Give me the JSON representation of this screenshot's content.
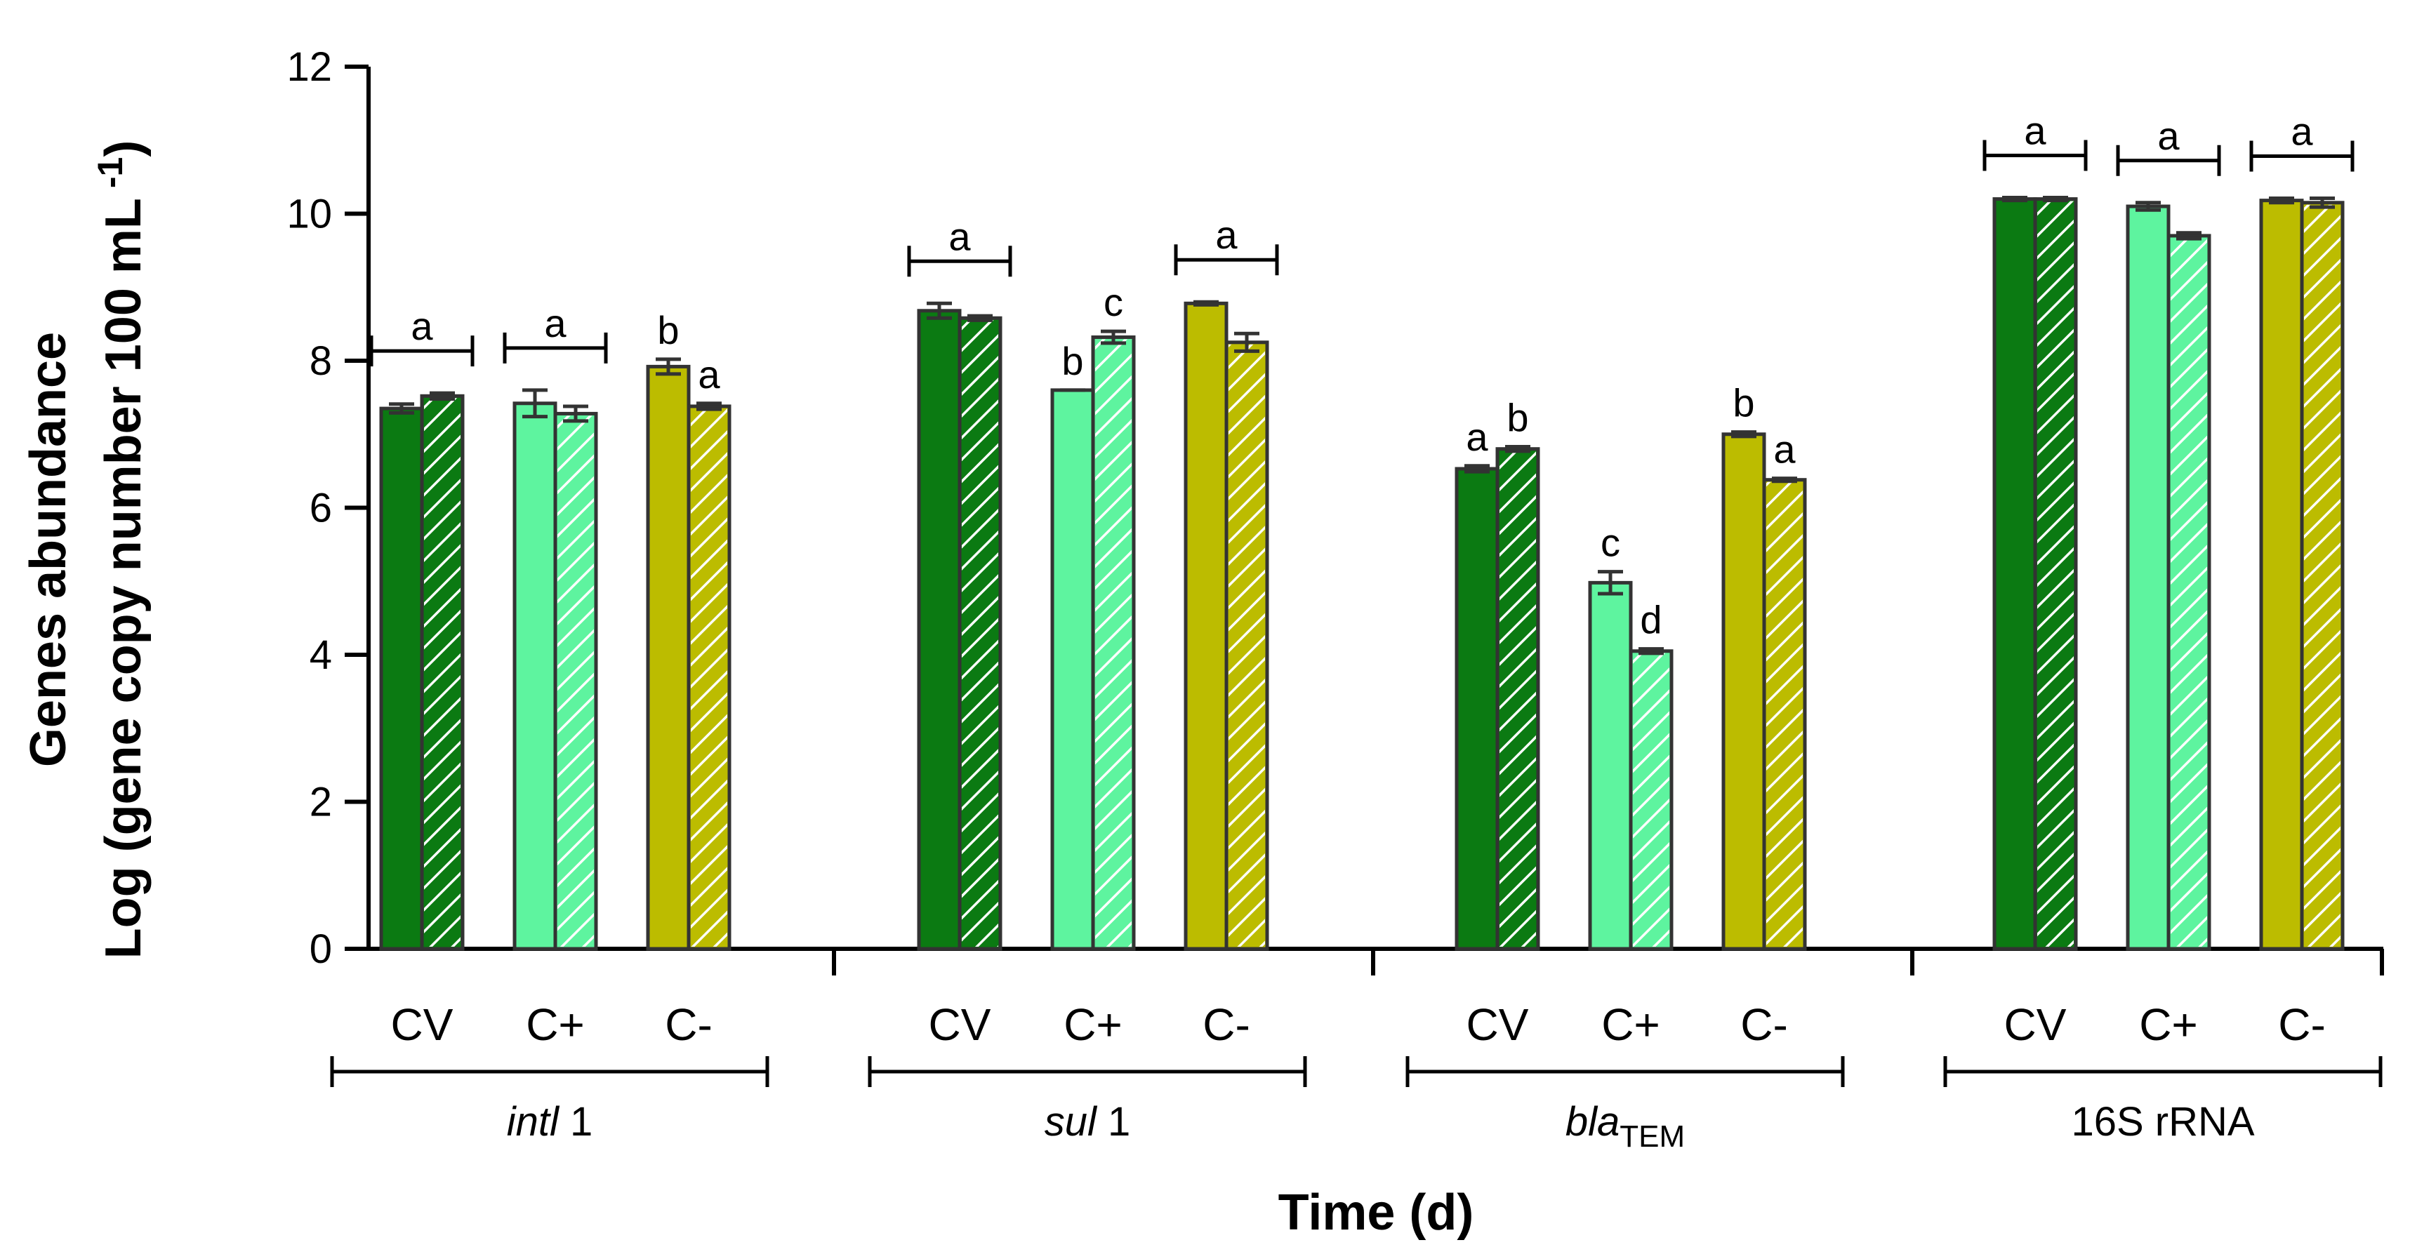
{
  "chart_data": {
    "type": "bar",
    "title": "",
    "xlabel": "Time (d)",
    "ylabel_line1": "Genes abundance",
    "ylabel_line2": "Log (gene copy number 100 mL",
    "ylabel_sup": "-1",
    "ylabel_close": ")",
    "ylim": [
      0,
      12
    ],
    "yticks": [
      "0",
      "2",
      "4",
      "6",
      "8",
      "10",
      "12"
    ],
    "grid": false,
    "colors": {
      "CV": "#0b7a12",
      "C+": "#5ef49f",
      "C-": "#bcbc00"
    },
    "groups": [
      {
        "label": "intl",
        "label_suffix": " 1",
        "categories": [
          "CV",
          "C+",
          "C-"
        ],
        "bars": [
          {
            "category": "CV",
            "pattern": "solid",
            "value": 7.35,
            "error": 0.06
          },
          {
            "category": "CV",
            "pattern": "hatched",
            "value": 7.52,
            "error": 0.04
          },
          {
            "category": "C+",
            "pattern": "solid",
            "value": 7.42,
            "error": 0.18
          },
          {
            "category": "C+",
            "pattern": "hatched",
            "value": 7.28,
            "error": 0.1
          },
          {
            "category": "C-",
            "pattern": "solid",
            "value": 7.92,
            "error": 0.1
          },
          {
            "category": "C-",
            "pattern": "hatched",
            "value": 7.38,
            "error": 0.04
          }
        ],
        "letters": [
          {
            "text": "a",
            "span": "pair",
            "category": "CV"
          },
          {
            "text": "a",
            "span": "pair",
            "category": "C+"
          },
          {
            "text": "b",
            "span": "bar",
            "index": 4
          },
          {
            "text": "a",
            "span": "bar",
            "index": 5
          }
        ]
      },
      {
        "label": "sul",
        "label_suffix": " 1",
        "categories": [
          "CV",
          "C+",
          "C-"
        ],
        "bars": [
          {
            "category": "CV",
            "pattern": "solid",
            "value": 8.68,
            "error": 0.1
          },
          {
            "category": "CV",
            "pattern": "hatched",
            "value": 8.58,
            "error": 0.03
          },
          {
            "category": "C+",
            "pattern": "solid",
            "value": 7.6,
            "error": 0.0
          },
          {
            "category": "C+",
            "pattern": "hatched",
            "value": 8.32,
            "error": 0.08
          },
          {
            "category": "C-",
            "pattern": "solid",
            "value": 8.78,
            "error": 0.02
          },
          {
            "category": "C-",
            "pattern": "hatched",
            "value": 8.25,
            "error": 0.12
          }
        ],
        "letters": [
          {
            "text": "a",
            "span": "pair",
            "category": "CV"
          },
          {
            "text": "b",
            "span": "bar",
            "index": 2
          },
          {
            "text": "c",
            "span": "bar",
            "index": 3
          },
          {
            "text": "a",
            "span": "pair",
            "category": "C-"
          }
        ]
      },
      {
        "label": "bla",
        "label_sub": "TEM",
        "categories": [
          "CV",
          "C+",
          "C-"
        ],
        "bars": [
          {
            "category": "CV",
            "pattern": "solid",
            "value": 6.53,
            "error": 0.04
          },
          {
            "category": "CV",
            "pattern": "hatched",
            "value": 6.8,
            "error": 0.03
          },
          {
            "category": "C+",
            "pattern": "solid",
            "value": 4.98,
            "error": 0.15
          },
          {
            "category": "C+",
            "pattern": "hatched",
            "value": 4.05,
            "error": 0.03
          },
          {
            "category": "C-",
            "pattern": "solid",
            "value": 7.0,
            "error": 0.03
          },
          {
            "category": "C-",
            "pattern": "hatched",
            "value": 6.38,
            "error": 0.02
          }
        ],
        "letters": [
          {
            "text": "a",
            "span": "bar",
            "index": 0
          },
          {
            "text": "b",
            "span": "bar",
            "index": 1
          },
          {
            "text": "c",
            "span": "bar",
            "index": 2
          },
          {
            "text": "d",
            "span": "bar",
            "index": 3
          },
          {
            "text": "b",
            "span": "bar",
            "index": 4
          },
          {
            "text": "a",
            "span": "bar",
            "index": 5
          }
        ]
      },
      {
        "label": "16S rRNA",
        "categories": [
          "CV",
          "C+",
          "C-"
        ],
        "bars": [
          {
            "category": "CV",
            "pattern": "solid",
            "value": 10.2,
            "error": 0.02
          },
          {
            "category": "CV",
            "pattern": "hatched",
            "value": 10.2,
            "error": 0.02
          },
          {
            "category": "C+",
            "pattern": "solid",
            "value": 10.1,
            "error": 0.05
          },
          {
            "category": "C+",
            "pattern": "hatched",
            "value": 9.7,
            "error": 0.04
          },
          {
            "category": "C-",
            "pattern": "solid",
            "value": 10.18,
            "error": 0.03
          },
          {
            "category": "C-",
            "pattern": "hatched",
            "value": 10.15,
            "error": 0.06
          }
        ],
        "letters": [
          {
            "text": "a",
            "span": "pair",
            "category": "CV"
          },
          {
            "text": "a",
            "span": "pair",
            "category": "C+"
          },
          {
            "text": "a",
            "span": "pair",
            "category": "C-"
          }
        ]
      }
    ]
  }
}
